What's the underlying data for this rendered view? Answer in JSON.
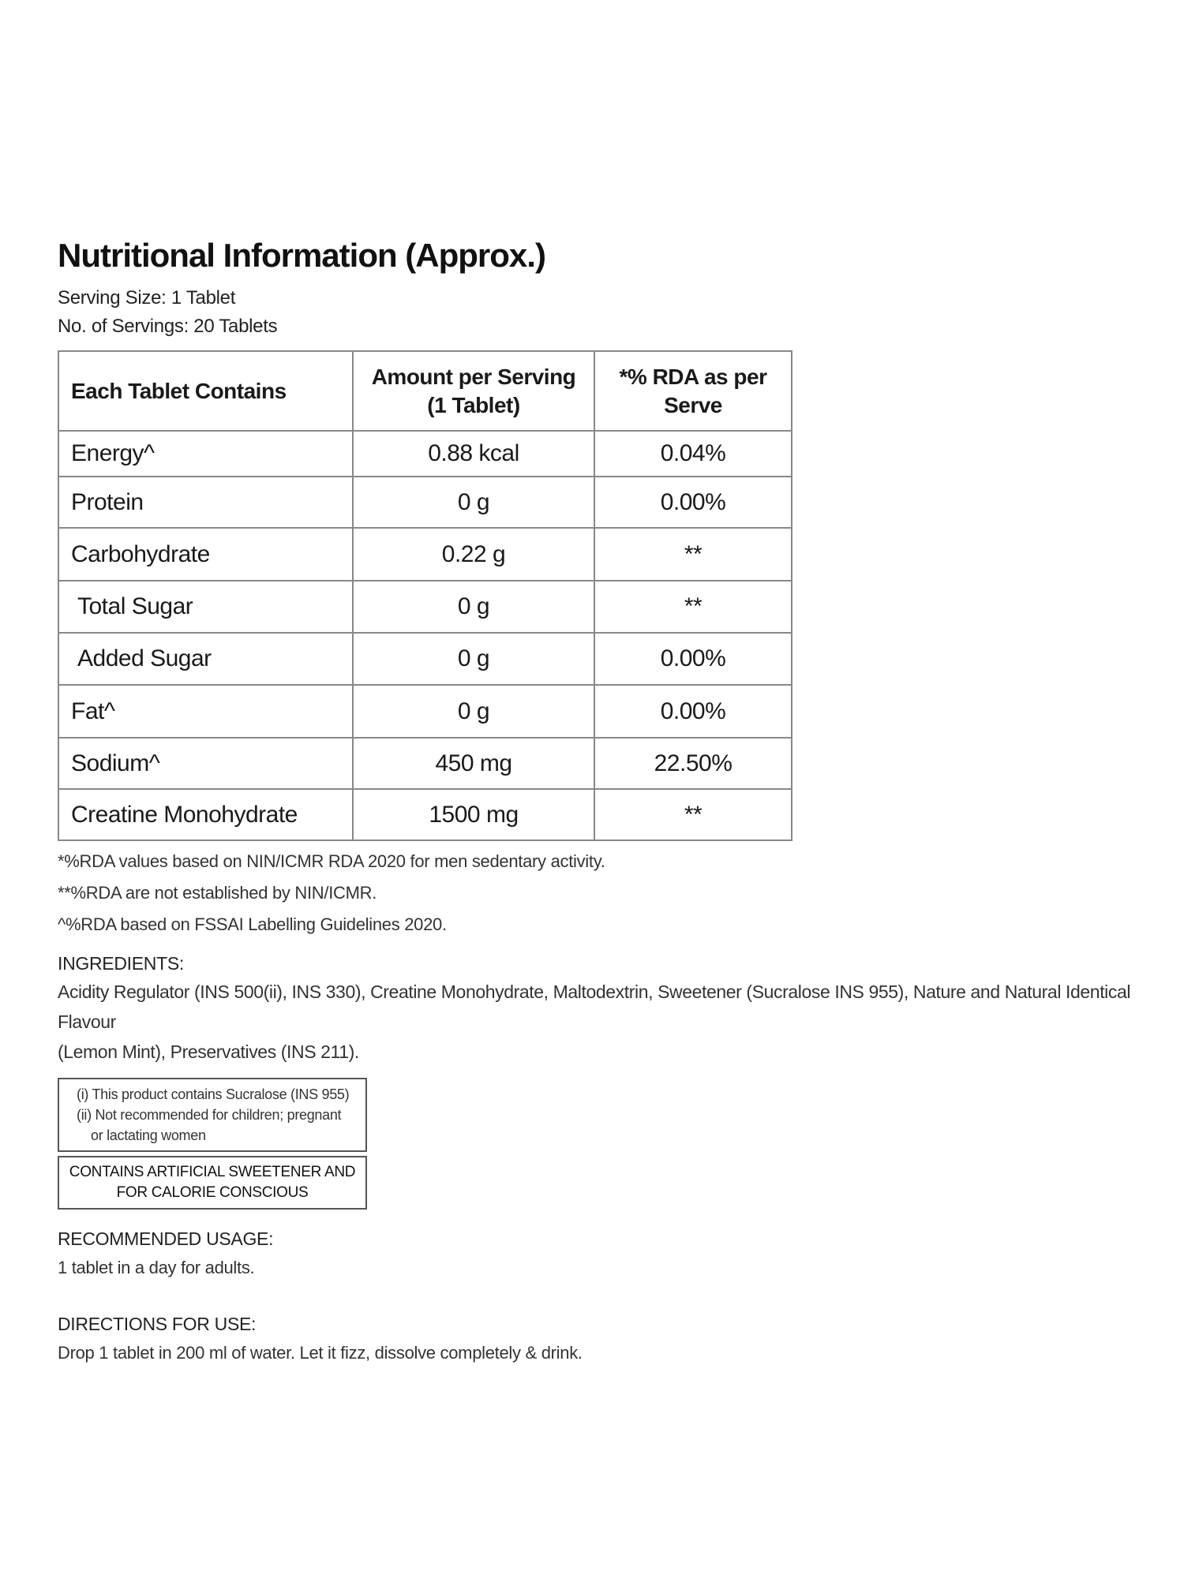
{
  "title": "Nutritional Information (Approx.)",
  "serving_size": "Serving Size: 1 Tablet",
  "servings": "No. of Servings: 20 Tablets",
  "table": {
    "headers": [
      "Each Tablet Contains",
      "Amount per Serving",
      "(1 Tablet)",
      "*% RDA as per",
      "Serve"
    ],
    "rows": [
      {
        "nutrient": "Energy^",
        "amount": "0.88 kcal",
        "rda": "0.04%"
      },
      {
        "nutrient": "Protein",
        "amount": "0 g",
        "rda": "0.00%"
      },
      {
        "nutrient": "Carbohydrate",
        "amount": "0.22 g",
        "rda": "**"
      },
      {
        "nutrient": "Total Sugar",
        "amount": "0 g",
        "rda": "**"
      },
      {
        "nutrient": "Added Sugar",
        "amount": "0 g",
        "rda": "0.00%"
      },
      {
        "nutrient": "Fat^",
        "amount": "0 g",
        "rda": "0.00%"
      },
      {
        "nutrient": "Sodium^",
        "amount": "450 mg",
        "rda": "22.50%"
      },
      {
        "nutrient": "Creatine Monohydrate",
        "amount": "1500 mg",
        "rda": "**"
      }
    ]
  },
  "footnotes": [
    "*%RDA values based on NIN/ICMR RDA 2020 for men sedentary activity.",
    "**%RDA are not established by NIN/ICMR.",
    "^%RDA based on FSSAI Labelling Guidelines 2020."
  ],
  "ingredients": {
    "heading": "INGREDIENTS:",
    "lines": [
      "Acidity Regulator (INS 500(ii), INS 330), Creatine Monohydrate, Maltodextrin, Sweetener (Sucralose INS 955), Nature and Natural Identical Flavour",
      "(Lemon Mint), Preservatives (INS 211)."
    ]
  },
  "warning_box": [
    "(i) This product contains Sucralose (INS 955)",
    "(ii) Not recommended for children; pregnant",
    "or lactating women"
  ],
  "sweetener_box": [
    "CONTAINS ARTIFICIAL SWEETENER AND",
    "FOR CALORIE CONSCIOUS"
  ],
  "usage": {
    "heading": "RECOMMENDED USAGE:",
    "text": "1 tablet in a day for adults."
  },
  "directions": {
    "heading": "DIRECTIONS FOR USE:",
    "text": "Drop 1 tablet in 200 ml of water. Let it fizz, dissolve completely & drink."
  }
}
